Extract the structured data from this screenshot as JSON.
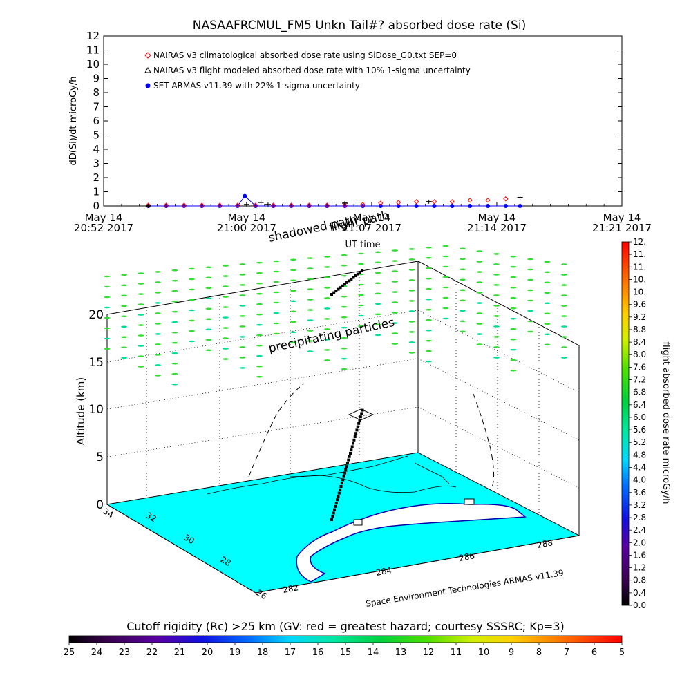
{
  "chart_data": [
    {
      "type": "line",
      "title": "NASAAFRCMUL_FM5 Unkn Tail#? absorbed dose rate (Si)",
      "ylabel": "dD(Si)/dt microGy/h",
      "xlabel": "UT time",
      "ylim": [
        0,
        12
      ],
      "yticks": [
        "0",
        "1",
        "2",
        "3",
        "4",
        "5",
        "6",
        "7",
        "8",
        "9",
        "10",
        "11",
        "12"
      ],
      "xlim_minutes": [
        0,
        29
      ],
      "x_tick_labels": [
        {
          "minute": 0,
          "line1": "May 14",
          "line2": "20:52 2017"
        },
        {
          "minute": 8,
          "line1": "May 14",
          "line2": "21:00 2017"
        },
        {
          "minute": 15,
          "line1": "May 14",
          "line2": "21:07 2017"
        },
        {
          "minute": 22,
          "line1": "May 14",
          "line2": "21:14 2017"
        },
        {
          "minute": 29,
          "line1": "May 14",
          "line2": "21:21 2017"
        }
      ],
      "legend": [
        {
          "name": "NAIRAS v3 climatological absorbed dose rate using SiDose_G0.txt SEP=0",
          "marker": "diamond",
          "color": "#ff0000"
        },
        {
          "name": "NAIRAS v3 flight modeled absorbed dose rate with 10% 1-sigma uncertainty",
          "marker": "triangle",
          "color": "#000000"
        },
        {
          "name": "SET ARMAS v11.39 with 22% 1-sigma uncertainty",
          "marker": "circle",
          "color": "#0000ff"
        }
      ],
      "legend_position": "top-left",
      "series": [
        {
          "name": "NAIRAS v3 climatological absorbed dose rate using SiDose_G0.txt SEP=0",
          "x_minutes": [
            2.5,
            3.5,
            4.5,
            5.5,
            6.5,
            7.5,
            8.5,
            9.5,
            10.5,
            11.5,
            12.5,
            13.5,
            14.5,
            15.5,
            16.5,
            17.5,
            18.5,
            19.5,
            20.5,
            21.5,
            22.5
          ],
          "values": [
            0.05,
            0.05,
            0.05,
            0.05,
            0.05,
            0.05,
            0.05,
            0.05,
            0.05,
            0.05,
            0.05,
            0.05,
            0.1,
            0.2,
            0.25,
            0.3,
            0.3,
            0.3,
            0.4,
            0.4,
            0.5
          ]
        },
        {
          "name": "NAIRAS v3 flight modeled absorbed dose rate with 10% 1-sigma uncertainty",
          "x_minutes": [
            2.5,
            8,
            8.8,
            9.2,
            13.5,
            18.2,
            23.3
          ],
          "values": [
            0,
            0.1,
            0.25,
            0.1,
            0.2,
            0.3,
            0.6
          ]
        },
        {
          "name": "SET ARMAS v11.39 with 22% 1-sigma uncertainty",
          "x_minutes": [
            2.5,
            3.5,
            4.5,
            5.5,
            6.5,
            7.5,
            7.9,
            8.5,
            9.5,
            10.5,
            11.5,
            12.5,
            13.5,
            14.5,
            15.5,
            16.5,
            17.5,
            18.5,
            19.5,
            20.5,
            21.5,
            22.5,
            23.3
          ],
          "values": [
            0,
            0,
            0,
            0,
            0,
            0,
            0.7,
            0,
            0,
            0,
            0,
            0,
            0,
            0,
            0,
            0,
            0,
            0,
            0,
            0,
            0,
            0,
            0
          ]
        }
      ]
    },
    {
      "type": "scatter",
      "title": "",
      "zlabel": "Altitude (km)",
      "zticks": [
        "0",
        "5",
        "10",
        "15",
        "20"
      ],
      "lat_ticks": [
        "28",
        "30",
        "32",
        "34",
        "26"
      ],
      "lon_ticks": [
        "282",
        "284",
        "286",
        "288"
      ],
      "annotations": [
        "shadowed path",
        "flight path",
        "precipitating particles"
      ],
      "credit": "Space Environment Technologies ARMAS v11.39",
      "colorbar": {
        "label": "flight absorbed dose rate microGy/h",
        "ticks": [
          "0.0",
          "0.4",
          "0.8",
          "1.2",
          "1.6",
          "2.0",
          "2.4",
          "2.8",
          "3.2",
          "3.6",
          "4.0",
          "4.4",
          "4.8",
          "5.2",
          "5.6",
          "6.0",
          "6.4",
          "6.8",
          "7.2",
          "7.6",
          "8.0",
          "8.4",
          "8.8",
          "9.2",
          "9.6",
          "10.",
          "10.",
          "11.",
          "11.",
          "12."
        ]
      },
      "colorbar_bottom": {
        "label": "Cutoff rigidity (Rc) >25 km (GV: red = greatest hazard; courtesy SSSRC; Kp=3)",
        "ticks": [
          "25",
          "24",
          "23",
          "22",
          "21",
          "20",
          "19",
          "18",
          "17",
          "16",
          "15",
          "14",
          "13",
          "12",
          "11",
          "10",
          "9",
          "8",
          "7",
          "6",
          "5"
        ]
      }
    }
  ],
  "colors": {
    "map_sea": "#00ffff",
    "map_land": "#ffffff",
    "particle_green": "#22dd22",
    "particle_cyan": "#00ddaa",
    "nairas_red": "#ff0000",
    "armas_blue": "#0000ff"
  }
}
